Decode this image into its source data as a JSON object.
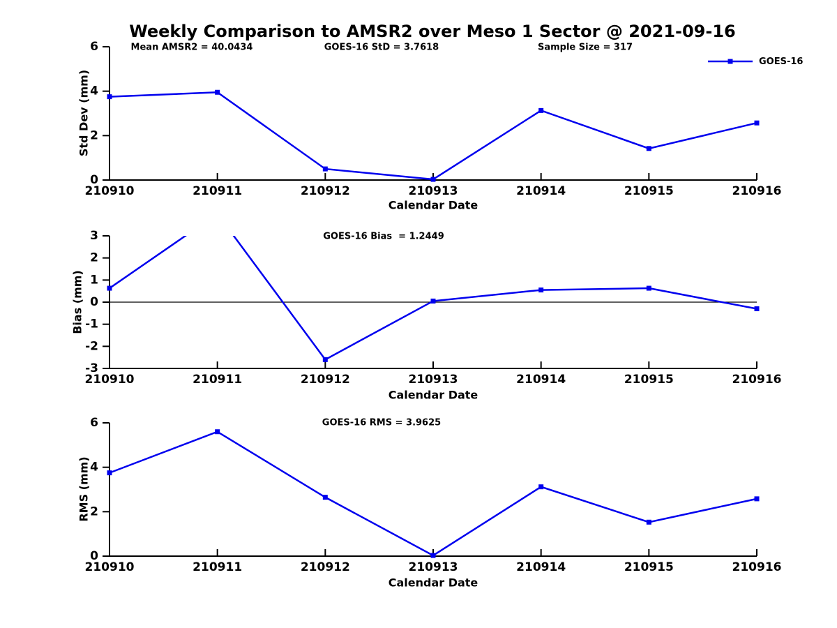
{
  "title": "Weekly Comparison to AMSR2 over Meso 1 Sector @ 2021-09-16",
  "colors": {
    "series": "#0000EE",
    "axis": "#000000",
    "background": "#ffffff"
  },
  "top_stats": [
    {
      "text": "Mean AMSR2 = 40.0434"
    },
    {
      "text": "GOES-16 StD = 3.7618"
    },
    {
      "text": "Sample Size = 317"
    }
  ],
  "legend": {
    "label": "GOES-16",
    "marker": "filled-square",
    "color": "#0000EE",
    "position": "top-right"
  },
  "chart_data": [
    {
      "type": "line",
      "title": "",
      "categories": [
        "210910",
        "210911",
        "210912",
        "210913",
        "210914",
        "210915",
        "210916"
      ],
      "series": [
        {
          "name": "GOES-16",
          "color": "#0000EE",
          "marker": "square",
          "values": [
            3.75,
            3.95,
            0.5,
            0.03,
            3.13,
            1.42,
            2.57
          ]
        }
      ],
      "xlabel": "Calendar Date",
      "ylabel": "Std Dev (mm)",
      "ylim": [
        0,
        6
      ],
      "yticks": [
        0,
        2,
        4,
        6
      ],
      "zero_line": false,
      "grid": false,
      "annotations": [
        "Mean AMSR2 = 40.0434",
        "GOES-16 StD = 3.7618",
        "Sample Size = 317"
      ]
    },
    {
      "type": "line",
      "title": "GOES-16 Bias  = 1.2449",
      "categories": [
        "210910",
        "210911",
        "210912",
        "210913",
        "210914",
        "210915",
        "210916"
      ],
      "series": [
        {
          "name": "GOES-16",
          "color": "#0000EE",
          "marker": "square",
          "values": [
            0.63,
            4.0,
            -2.6,
            0.05,
            0.55,
            0.63,
            -0.3
          ],
          "note": "value at 210911 exceeds ylim and is clipped (no marker shown)"
        }
      ],
      "xlabel": "Calendar Date",
      "ylabel": "Bias (mm)",
      "ylim": [
        -3,
        3
      ],
      "yticks": [
        -3,
        -2,
        -1,
        0,
        1,
        2,
        3
      ],
      "zero_line": true,
      "grid": false
    },
    {
      "type": "line",
      "title": "GOES-16 RMS = 3.9625",
      "categories": [
        "210910",
        "210911",
        "210912",
        "210913",
        "210914",
        "210915",
        "210916"
      ],
      "series": [
        {
          "name": "GOES-16",
          "color": "#0000EE",
          "marker": "square",
          "values": [
            3.75,
            5.6,
            2.65,
            0.03,
            3.12,
            1.53,
            2.58
          ]
        }
      ],
      "xlabel": "Calendar Date",
      "ylabel": "RMS (mm)",
      "ylim": [
        0,
        6
      ],
      "yticks": [
        0,
        2,
        4,
        6
      ],
      "zero_line": false,
      "grid": false
    }
  ]
}
